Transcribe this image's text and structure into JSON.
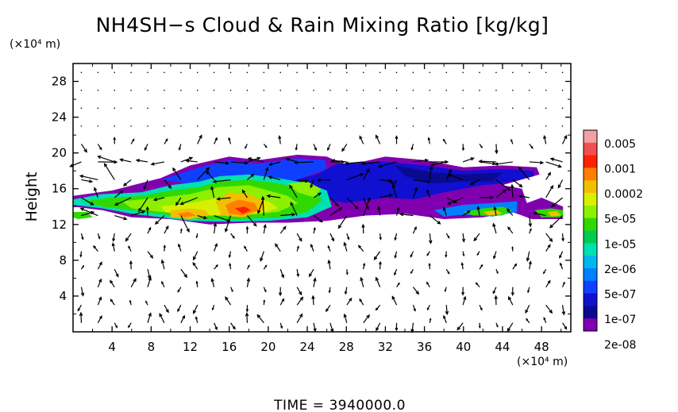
{
  "chart_data": {
    "type": "heatmap",
    "title": "NH4SH−s Cloud & Rain Mixing Ratio [kg/kg]",
    "ylabel": "Height",
    "y_unit": "(×10⁴ m)",
    "x_unit": "(×10⁴ m)",
    "footer": "TIME  =  3940000.0",
    "xlim": [
      0,
      51
    ],
    "ylim": [
      0,
      30
    ],
    "x_ticks": [
      "4",
      "8",
      "12",
      "16",
      "20",
      "24",
      "28",
      "32",
      "36",
      "40",
      "44",
      "48"
    ],
    "y_ticks": [
      "4",
      "8",
      "12",
      "16",
      "20",
      "24",
      "28"
    ],
    "colorbar": {
      "labels": [
        "0.005",
        "0.001",
        "0.0002",
        "5e-05",
        "1e-05",
        "2e-06",
        "5e-07",
        "1e-07",
        "2e-08"
      ],
      "colors": [
        "#f4a0a0",
        "#f05050",
        "#ff2000",
        "#ff8000",
        "#f0c000",
        "#d8f000",
        "#8cf000",
        "#30d800",
        "#00cc50",
        "#00e0b0",
        "#00b8f0",
        "#0080ff",
        "#1040ff",
        "#1010d0",
        "#0a0a90",
        "#8000b0"
      ]
    },
    "grid": false,
    "legend": "right colorbar",
    "overlay": "wind vectors"
  }
}
